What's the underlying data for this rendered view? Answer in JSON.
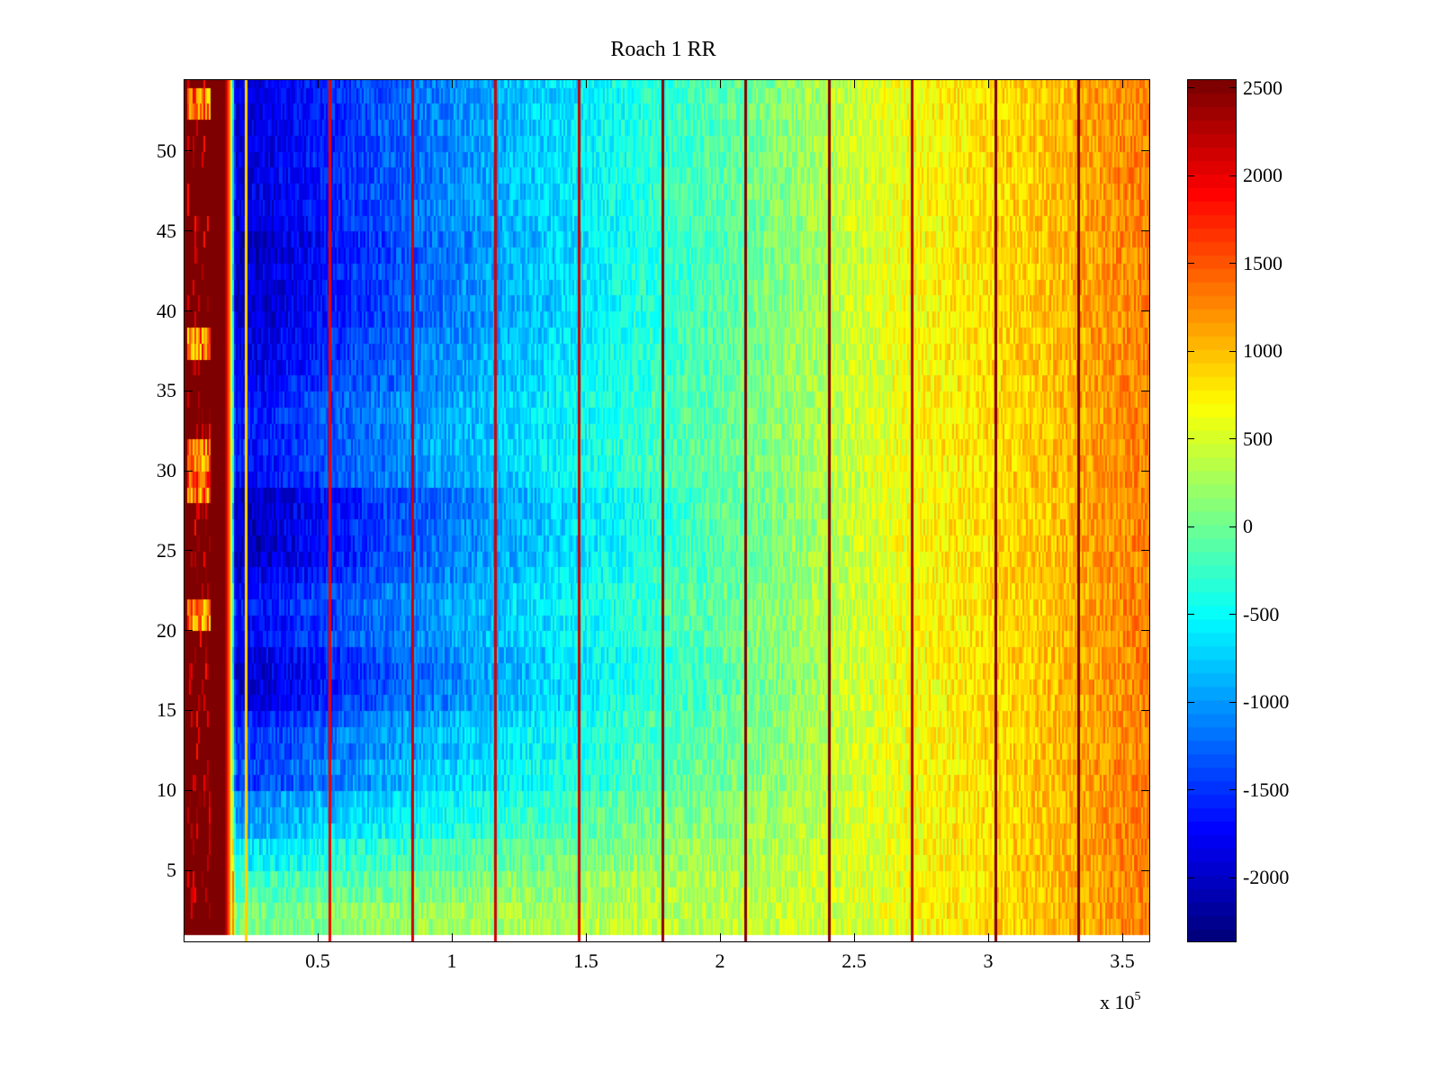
{
  "chart_data": {
    "type": "heatmap",
    "title": "Roach 1 RR",
    "xlabel": "",
    "ylabel": "",
    "x_multiplier_label": "x 10",
    "x_multiplier_exponent": "5",
    "xlim": [
      0,
      3.604
    ],
    "ylim": [
      0.5,
      54.5
    ],
    "rows": 54,
    "xticks": [
      0.5,
      1,
      1.5,
      2,
      2.5,
      3,
      3.5
    ],
    "xtick_labels": [
      "0.5",
      "1",
      "1.5",
      "2",
      "2.5",
      "3",
      "3.5"
    ],
    "yticks": [
      5,
      10,
      15,
      20,
      25,
      30,
      35,
      40,
      45,
      50
    ],
    "ytick_labels": [
      "5",
      "10",
      "15",
      "20",
      "25",
      "30",
      "35",
      "40",
      "45",
      "50"
    ],
    "colormap": "jet",
    "clim": [
      -2369,
      2551
    ],
    "colorbar_ticks": [
      2500,
      2000,
      1500,
      1000,
      500,
      0,
      -500,
      -1000,
      -1500,
      -2000
    ],
    "colorbar_tick_labels": [
      "2500",
      "2000",
      "1500",
      "1000",
      "500",
      "0",
      "-500",
      "-1000",
      "-1500",
      "-2000"
    ],
    "column_profile": {
      "x": [
        0,
        0.15,
        0.17,
        0.19,
        0.3,
        0.5,
        0.75,
        1.0,
        1.25,
        1.5,
        1.75,
        2.0,
        2.25,
        2.5,
        2.75,
        3.0,
        3.25,
        3.5,
        3.604
      ],
      "value": [
        2550,
        2550,
        1200,
        -1900,
        -1850,
        -1600,
        -1300,
        -1050,
        -800,
        -550,
        -300,
        -100,
        150,
        450,
        700,
        850,
        1000,
        1250,
        1300
      ]
    },
    "row_adjust": [
      2100,
      2100,
      1900,
      1800,
      1500,
      1400,
      1100,
      1000,
      900,
      500,
      600,
      400,
      450,
      300,
      0,
      -50,
      -50,
      0,
      200,
      150,
      250,
      200,
      0,
      -100,
      -150,
      -100,
      -150,
      -150,
      200,
      250,
      300,
      250,
      300,
      250,
      100,
      50,
      50,
      0,
      -100,
      -100,
      -100,
      -50,
      -150,
      -150,
      -50,
      0,
      0,
      0,
      0,
      -50,
      0,
      0,
      0,
      0
    ],
    "left_band_hot_rows": [
      20,
      21,
      28,
      29,
      30,
      31,
      37,
      38,
      52,
      53
    ],
    "vertical_lines": {
      "x": [
        0.232,
        0.544,
        0.852,
        1.161,
        1.473,
        1.785,
        2.094,
        2.406,
        2.715,
        3.027,
        3.336
      ],
      "value": [
        900,
        2000,
        2100,
        2100,
        2100,
        2400,
        2500,
        2500,
        2300,
        2550,
        2550
      ]
    }
  }
}
